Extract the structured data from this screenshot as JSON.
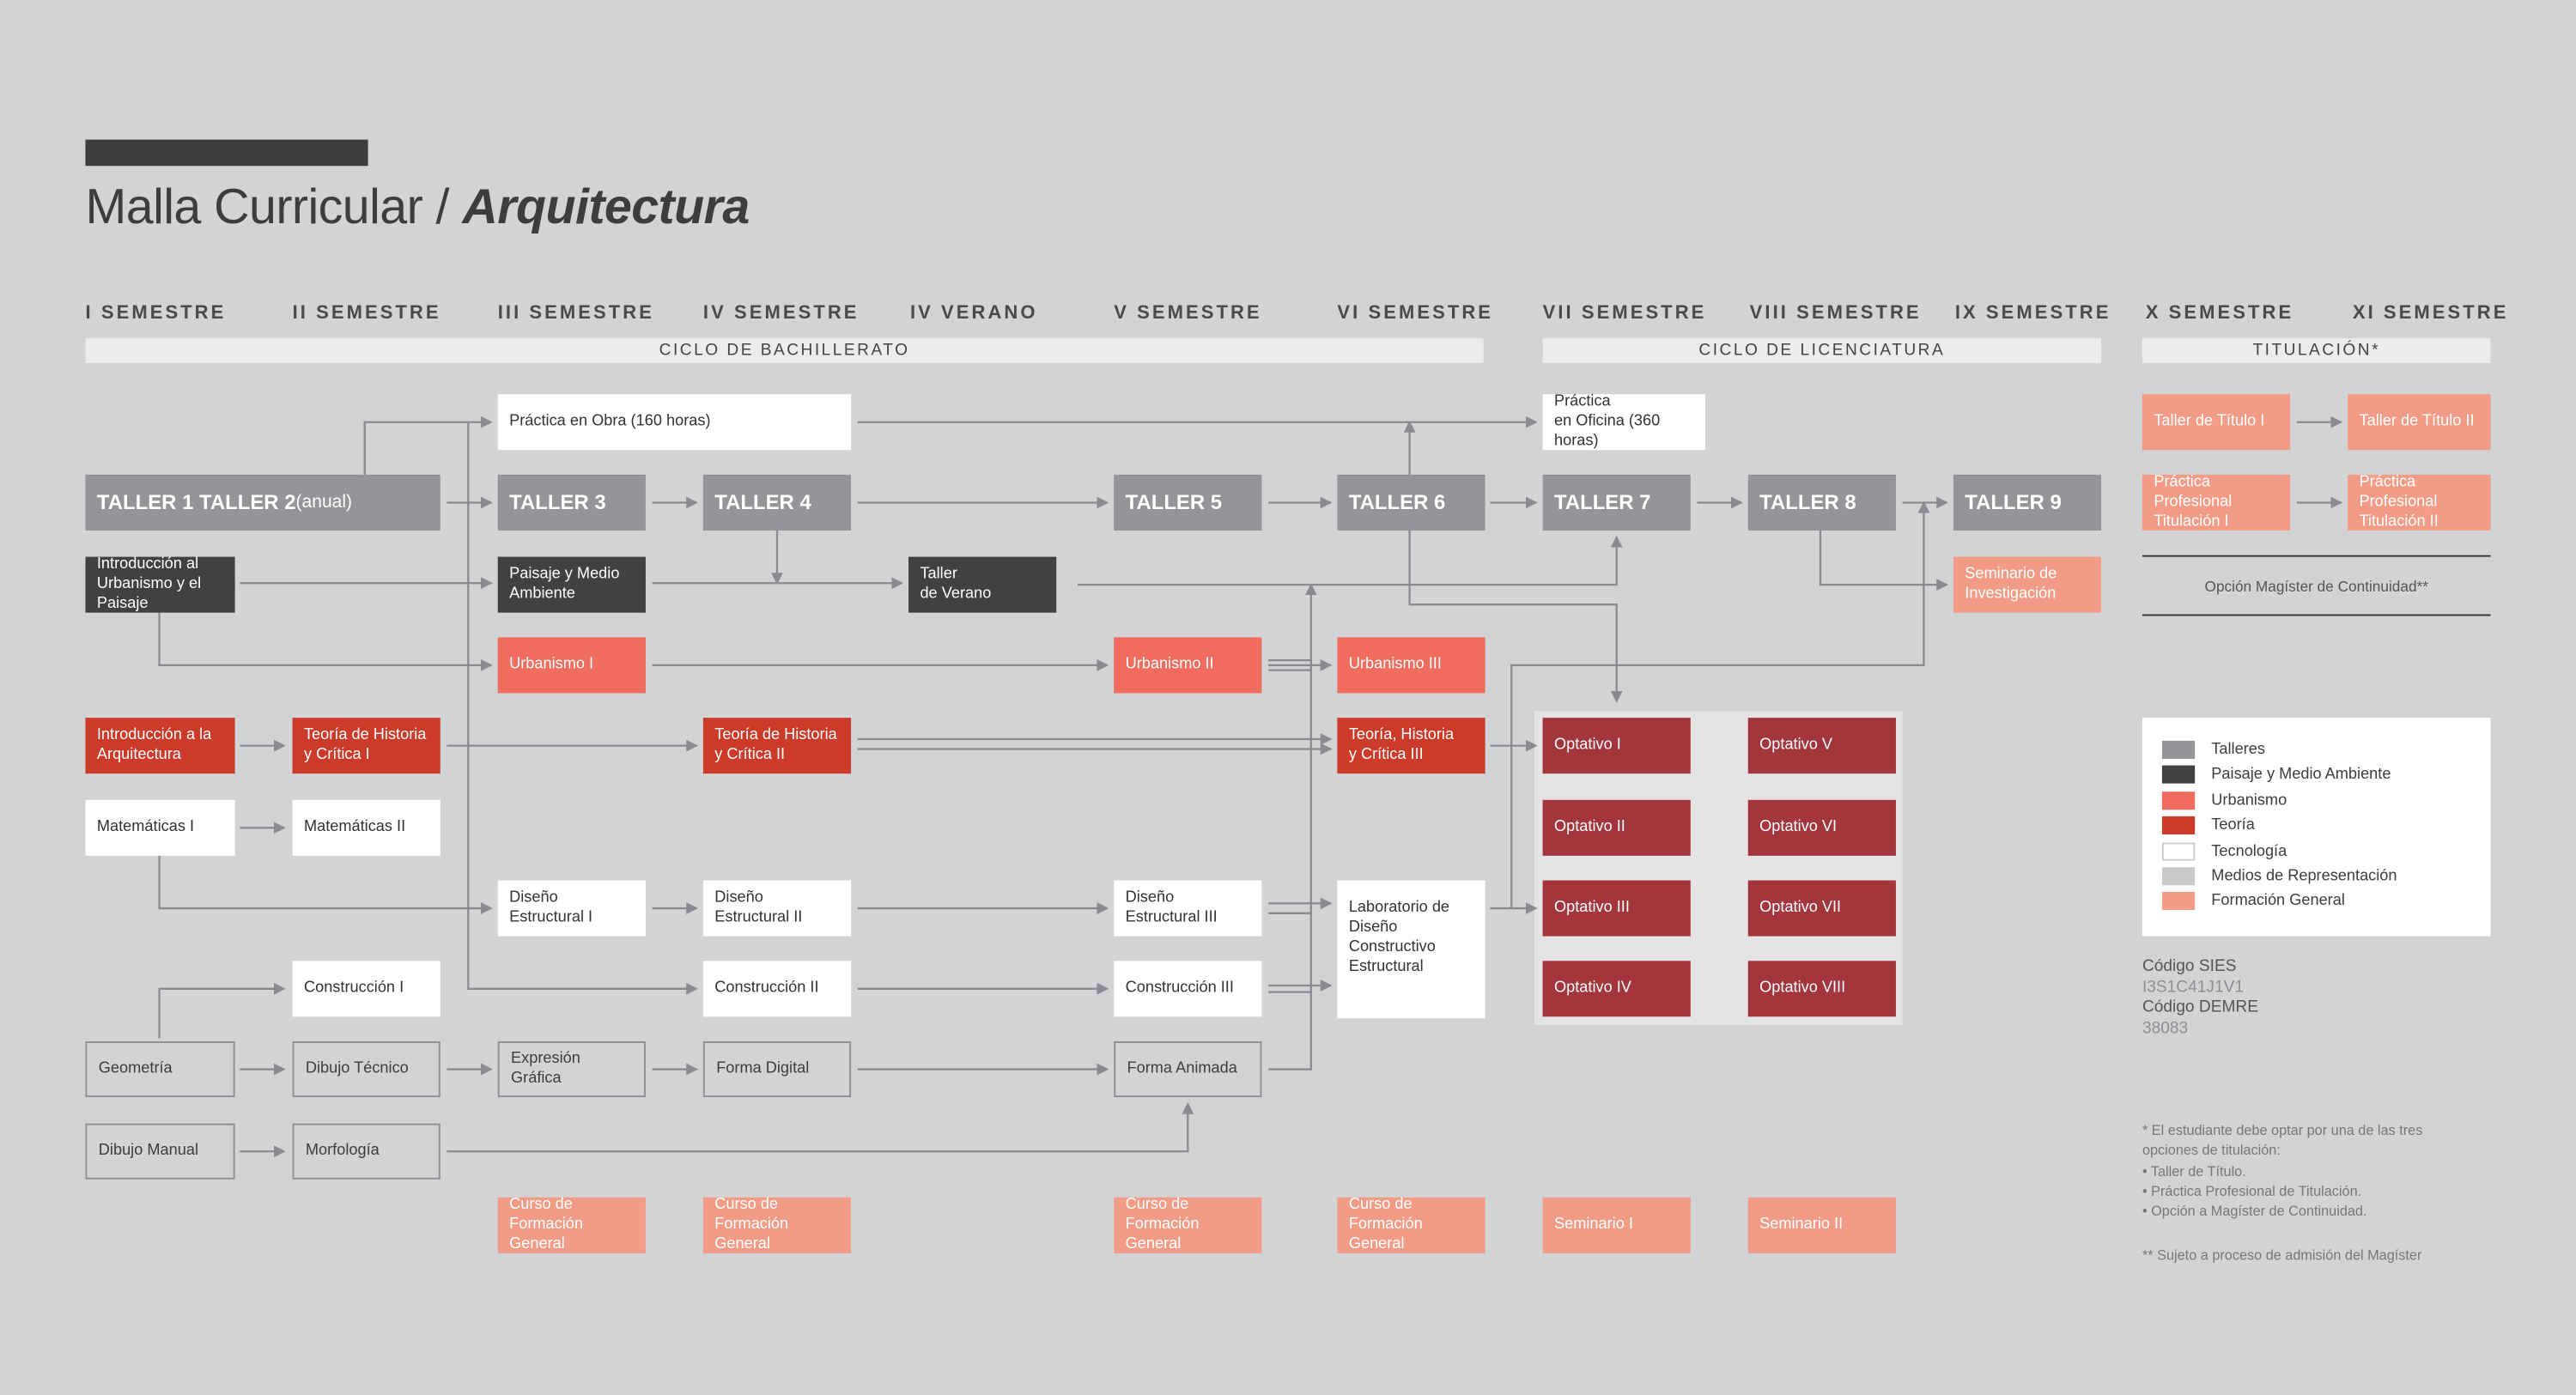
{
  "header": {
    "title_light": "Malla Curricular / ",
    "title_bold": "Arquitectura"
  },
  "semesters": [
    "I SEMESTRE",
    "II SEMESTRE",
    "III SEMESTRE",
    "IV SEMESTRE",
    "IV VERANO",
    "V SEMESTRE",
    "VI SEMESTRE",
    "VII SEMESTRE",
    "VIII SEMESTRE",
    "IX SEMESTRE",
    "X SEMESTRE",
    "XI SEMESTRE"
  ],
  "cycles": {
    "bachillerato": "CICLO DE BACHILLERATO",
    "licenciatura": "CICLO DE LICENCIATURA",
    "titulacion": "TITULACIÓN*"
  },
  "courses": {
    "practica_obra": "Práctica en Obra (160 horas)",
    "practica_oficina": "Práctica\nen Oficina (360 horas)",
    "taller_1_2": "TALLER 1 TALLER 2",
    "taller_1_2_note": " (anual)",
    "taller_3": "TALLER 3",
    "taller_4": "TALLER 4",
    "taller_5": "TALLER 5",
    "taller_6": "TALLER 6",
    "taller_7": "TALLER 7",
    "taller_8": "TALLER 8",
    "taller_9": "TALLER 9",
    "intro_urbanismo": "Introducción al\nUrbanismo y el Paisaje",
    "paisaje_medio": "Paisaje y Medio\nAmbiente",
    "taller_verano": "Taller\nde Verano",
    "seminario_inv": "Seminario de\nInvestigación",
    "urbanismo_1": "Urbanismo I",
    "urbanismo_2": "Urbanismo II",
    "urbanismo_3": "Urbanismo III",
    "intro_arq": "Introducción a la\nArquitectura",
    "teoria_1": "Teoría de Historia\ny Crítica I",
    "teoria_2": "Teoría de Historia\ny Crítica II",
    "teoria_3": "Teoría, Historia\ny Crítica III",
    "mate_1": "Matemáticas I",
    "mate_2": "Matemáticas II",
    "diseno_1": "Diseño Estructural I",
    "diseno_2": "Diseño Estructural II",
    "diseno_3": "Diseño Estructural III",
    "lab_diseno": "Laboratorio de\nDiseño Constructivo\nEstructural",
    "construccion_1": "Construcción I",
    "construccion_2": "Construcción II",
    "construccion_3": "Construcción III",
    "geometria": "Geometría",
    "dibujo_tecnico": "Dibujo Técnico",
    "expresion_grafica": "Expresión Gráfica",
    "forma_digital": "Forma Digital",
    "forma_animada": "Forma Animada",
    "dibujo_manual": "Dibujo Manual",
    "morfologia": "Morfología",
    "cfg": "Curso de\nFormación General",
    "seminario_1": "Seminario I",
    "seminario_2": "Seminario II",
    "optativo": [
      "Optativo I",
      "Optativo II",
      "Optativo III",
      "Optativo IV",
      "Optativo V",
      "Optativo VI",
      "Optativo VII",
      "Optativo VIII"
    ],
    "titulo_1": "Taller de Título I",
    "titulo_2": "Taller de Título II",
    "practica_tit_1": "Práctica Profesional\nTitulación I",
    "practica_tit_2": "Práctica Profesional\nTitulación II"
  },
  "magister": "Opción Magíster de Continuidad**",
  "legend": {
    "items": [
      {
        "label": "Talleres",
        "color": "#939598"
      },
      {
        "label": "Paisaje y Medio Ambiente",
        "color": "#414143"
      },
      {
        "label": "Urbanismo",
        "color": "#ef6c5e"
      },
      {
        "label": "Teoría",
        "color": "#cc3a29"
      },
      {
        "label": "Tecnología",
        "color": "#ffffff"
      },
      {
        "label": "Medios de Representación",
        "color": "#c8c9cb"
      },
      {
        "label": "Formación General",
        "color": "#f29c87"
      }
    ]
  },
  "codes": {
    "sies_label": "Código SIES",
    "sies_value": "I3S1C41J1V1",
    "demre_label": "Código DEMRE",
    "demre_value": "38083"
  },
  "notes": {
    "note1": "* El estudiante debe optar por una de las tres\n   opciones de titulación:\n• Taller de Título.\n• Práctica Profesional de Titulación.\n• Opción a Magíster de Continuidad.",
    "note2": "** Sujeto a proceso de admisión del Magíster"
  }
}
